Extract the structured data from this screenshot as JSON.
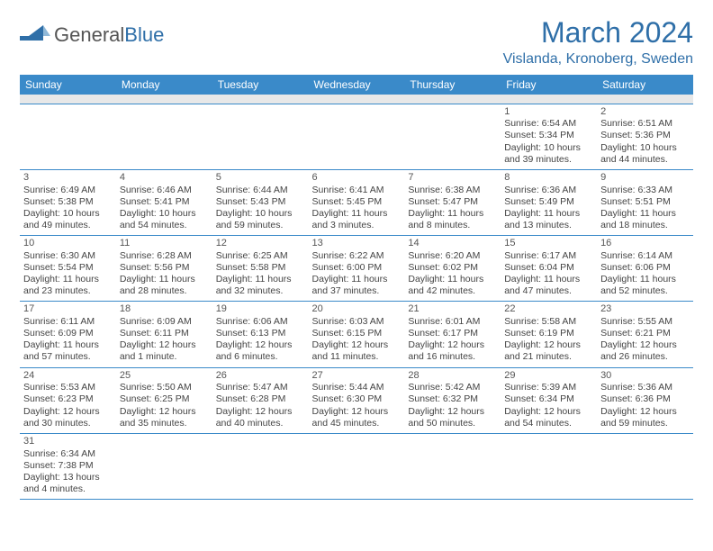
{
  "logo": {
    "part1": "General",
    "part2": "Blue"
  },
  "title": "March 2024",
  "location": "Vislanda, Kronoberg, Sweden",
  "colors": {
    "header_bg": "#3a8ac9",
    "header_text": "#ffffff",
    "accent": "#2f6fa8",
    "cell_border": "#3a8ac9",
    "blank_row": "#e8e8e8",
    "body_text": "#444444"
  },
  "weekdays": [
    "Sunday",
    "Monday",
    "Tuesday",
    "Wednesday",
    "Thursday",
    "Friday",
    "Saturday"
  ],
  "days": {
    "1": {
      "sunrise": "6:54 AM",
      "sunset": "5:34 PM",
      "daylight": "10 hours and 39 minutes."
    },
    "2": {
      "sunrise": "6:51 AM",
      "sunset": "5:36 PM",
      "daylight": "10 hours and 44 minutes."
    },
    "3": {
      "sunrise": "6:49 AM",
      "sunset": "5:38 PM",
      "daylight": "10 hours and 49 minutes."
    },
    "4": {
      "sunrise": "6:46 AM",
      "sunset": "5:41 PM",
      "daylight": "10 hours and 54 minutes."
    },
    "5": {
      "sunrise": "6:44 AM",
      "sunset": "5:43 PM",
      "daylight": "10 hours and 59 minutes."
    },
    "6": {
      "sunrise": "6:41 AM",
      "sunset": "5:45 PM",
      "daylight": "11 hours and 3 minutes."
    },
    "7": {
      "sunrise": "6:38 AM",
      "sunset": "5:47 PM",
      "daylight": "11 hours and 8 minutes."
    },
    "8": {
      "sunrise": "6:36 AM",
      "sunset": "5:49 PM",
      "daylight": "11 hours and 13 minutes."
    },
    "9": {
      "sunrise": "6:33 AM",
      "sunset": "5:51 PM",
      "daylight": "11 hours and 18 minutes."
    },
    "10": {
      "sunrise": "6:30 AM",
      "sunset": "5:54 PM",
      "daylight": "11 hours and 23 minutes."
    },
    "11": {
      "sunrise": "6:28 AM",
      "sunset": "5:56 PM",
      "daylight": "11 hours and 28 minutes."
    },
    "12": {
      "sunrise": "6:25 AM",
      "sunset": "5:58 PM",
      "daylight": "11 hours and 32 minutes."
    },
    "13": {
      "sunrise": "6:22 AM",
      "sunset": "6:00 PM",
      "daylight": "11 hours and 37 minutes."
    },
    "14": {
      "sunrise": "6:20 AM",
      "sunset": "6:02 PM",
      "daylight": "11 hours and 42 minutes."
    },
    "15": {
      "sunrise": "6:17 AM",
      "sunset": "6:04 PM",
      "daylight": "11 hours and 47 minutes."
    },
    "16": {
      "sunrise": "6:14 AM",
      "sunset": "6:06 PM",
      "daylight": "11 hours and 52 minutes."
    },
    "17": {
      "sunrise": "6:11 AM",
      "sunset": "6:09 PM",
      "daylight": "11 hours and 57 minutes."
    },
    "18": {
      "sunrise": "6:09 AM",
      "sunset": "6:11 PM",
      "daylight": "12 hours and 1 minute."
    },
    "19": {
      "sunrise": "6:06 AM",
      "sunset": "6:13 PM",
      "daylight": "12 hours and 6 minutes."
    },
    "20": {
      "sunrise": "6:03 AM",
      "sunset": "6:15 PM",
      "daylight": "12 hours and 11 minutes."
    },
    "21": {
      "sunrise": "6:01 AM",
      "sunset": "6:17 PM",
      "daylight": "12 hours and 16 minutes."
    },
    "22": {
      "sunrise": "5:58 AM",
      "sunset": "6:19 PM",
      "daylight": "12 hours and 21 minutes."
    },
    "23": {
      "sunrise": "5:55 AM",
      "sunset": "6:21 PM",
      "daylight": "12 hours and 26 minutes."
    },
    "24": {
      "sunrise": "5:53 AM",
      "sunset": "6:23 PM",
      "daylight": "12 hours and 30 minutes."
    },
    "25": {
      "sunrise": "5:50 AM",
      "sunset": "6:25 PM",
      "daylight": "12 hours and 35 minutes."
    },
    "26": {
      "sunrise": "5:47 AM",
      "sunset": "6:28 PM",
      "daylight": "12 hours and 40 minutes."
    },
    "27": {
      "sunrise": "5:44 AM",
      "sunset": "6:30 PM",
      "daylight": "12 hours and 45 minutes."
    },
    "28": {
      "sunrise": "5:42 AM",
      "sunset": "6:32 PM",
      "daylight": "12 hours and 50 minutes."
    },
    "29": {
      "sunrise": "5:39 AM",
      "sunset": "6:34 PM",
      "daylight": "12 hours and 54 minutes."
    },
    "30": {
      "sunrise": "5:36 AM",
      "sunset": "6:36 PM",
      "daylight": "12 hours and 59 minutes."
    },
    "31": {
      "sunrise": "6:34 AM",
      "sunset": "7:38 PM",
      "daylight": "13 hours and 4 minutes."
    }
  },
  "layout": {
    "first_weekday_index": 5,
    "num_days": 31,
    "labels": {
      "sunrise": "Sunrise:",
      "sunset": "Sunset:",
      "daylight": "Daylight:"
    }
  }
}
